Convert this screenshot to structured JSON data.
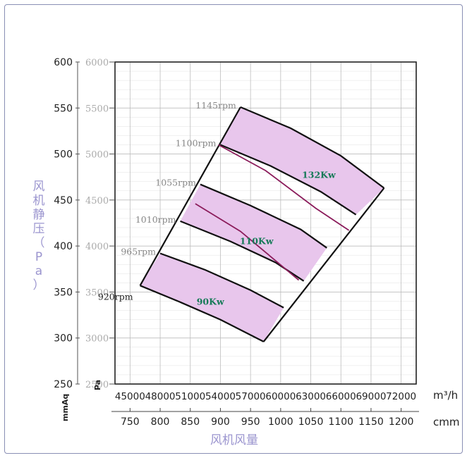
{
  "chart_data": {
    "type": "line",
    "ylabel": "风机静压（Pa）",
    "xlabel": "风机风量",
    "units": {
      "pa": "Pa",
      "mmaq": "mmAq",
      "m3h": "m³/h",
      "cmm": "cmm"
    },
    "y_mmaq_ticks": [
      "600",
      "550",
      "500",
      "450",
      "400",
      "350",
      "300",
      "250"
    ],
    "y_pa_ticks": [
      "6000",
      "5500",
      "5000",
      "4500",
      "4000",
      "3500",
      "3000",
      "2500"
    ],
    "x_m3h_ticks": [
      "45000",
      "48000",
      "51000",
      "54000",
      "57000",
      "60000",
      "63000",
      "66000",
      "69000",
      "72000"
    ],
    "x_cmm_ticks": [
      "750",
      "800",
      "850",
      "900",
      "950",
      "1000",
      "1050",
      "1100",
      "1150",
      "1200"
    ],
    "xlim_m3h": [
      43500,
      73500
    ],
    "ylim_mmaq": [
      250,
      600
    ],
    "grid": true,
    "series": [
      {
        "name": "920rpm",
        "points": [
          [
            46000,
            357
          ],
          [
            50000,
            339
          ],
          [
            54000,
            320
          ],
          [
            58300,
            296
          ]
        ]
      },
      {
        "name": "965rpm",
        "points": [
          [
            48000,
            392
          ],
          [
            52500,
            374
          ],
          [
            57000,
            352
          ],
          [
            60300,
            333
          ]
        ]
      },
      {
        "name": "1010rpm",
        "points": [
          [
            50000,
            427
          ],
          [
            55000,
            405
          ],
          [
            59500,
            382
          ],
          [
            62300,
            362
          ]
        ]
      },
      {
        "name": "1055rpm",
        "points": [
          [
            52000,
            467
          ],
          [
            57000,
            444
          ],
          [
            62000,
            418
          ],
          [
            64600,
            398
          ]
        ]
      },
      {
        "name": "1100rpm",
        "points": [
          [
            54000,
            510
          ],
          [
            59000,
            487
          ],
          [
            64000,
            459
          ],
          [
            67500,
            434
          ]
        ]
      },
      {
        "name": "1145rpm",
        "points": [
          [
            56000,
            551
          ],
          [
            61000,
            528
          ],
          [
            66000,
            498
          ],
          [
            70300,
            463
          ]
        ]
      }
    ],
    "boundary": {
      "left": [
        [
          46000,
          357
        ],
        [
          56000,
          551
        ]
      ],
      "right": [
        [
          58300,
          296
        ],
        [
          70300,
          463
        ]
      ]
    },
    "power_lines": [
      {
        "name": "90Kw",
        "points": [
          [
            51500,
            446
          ],
          [
            56000,
            416
          ],
          [
            61800,
            363
          ]
        ]
      },
      {
        "name": "132Kw",
        "points": [
          [
            53800,
            510
          ],
          [
            58500,
            482
          ],
          [
            63500,
            441
          ],
          [
            66800,
            417
          ]
        ]
      }
    ],
    "shaded_bands": [
      [
        "920rpm",
        "965rpm"
      ],
      [
        "1010rpm",
        "1055rpm"
      ],
      [
        "1100rpm",
        "1145rpm"
      ]
    ],
    "annotations": [
      "920rpm",
      "965rpm",
      "1010rpm",
      "1055rpm",
      "1100rpm",
      "1145rpm",
      "90Kw",
      "110Kw",
      "132Kw"
    ],
    "colors": {
      "band": "#e8c6ec",
      "curve": "#111111",
      "power_line": "#8b1c5b",
      "kw_label": "#157a57",
      "rpm_label": "#888888",
      "grid": "#bdbdbd",
      "axis_title": "#9b95cf"
    }
  }
}
